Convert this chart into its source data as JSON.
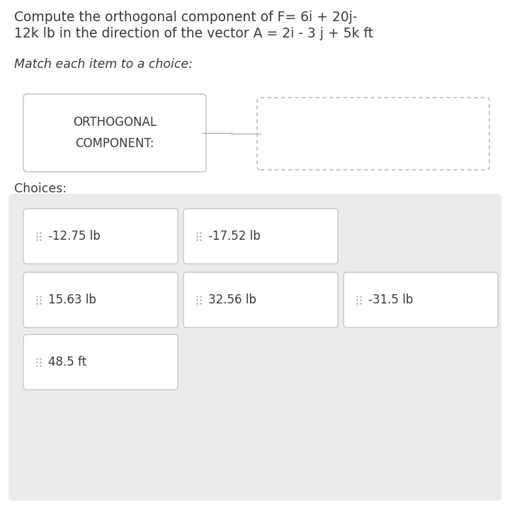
{
  "title_line1": "Compute the orthogonal component of F= 6i + 20j-",
  "title_line2": "12k lb in the direction of the vector A = 2i - 3 j + 5k ft",
  "subtitle": "Match each item to a choice:",
  "item_label": "ORTHOGONAL\nCOMPONENT:",
  "choices_label": "Choices:",
  "choices": [
    [
      "-12.75 lb",
      "-17.52 lb"
    ],
    [
      "15.63 lb",
      "32.56 lb",
      "-31.5 lb"
    ],
    [
      "48.5 ft"
    ]
  ],
  "bg_color": "#ffffff",
  "choices_bg": "#ebebeb",
  "box_bg": "#ffffff",
  "box_border": "#c8c8c8",
  "dashed_border": "#b0b0b0",
  "text_color": "#3a3a3a",
  "dot_color": "#b0b0b0",
  "title_fontsize": 13.5,
  "subtitle_fontsize": 12.5,
  "choices_fontsize": 12,
  "item_fontsize": 12
}
